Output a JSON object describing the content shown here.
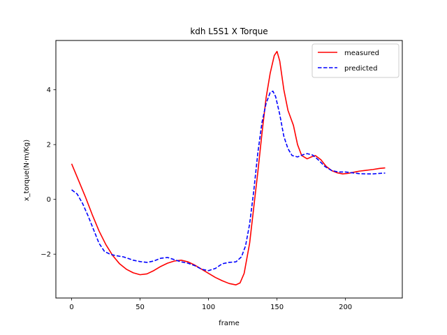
{
  "chart_data": {
    "type": "line",
    "title": "kdh L5S1 X Torque",
    "xlabel": "frame",
    "ylabel": "x_torque(N·m/Kg)",
    "xlim": [
      -11.5,
      241.5
    ],
    "ylim": [
      -3.6,
      5.8
    ],
    "xticks": [
      0,
      50,
      100,
      150,
      200
    ],
    "yticks": [
      -2,
      0,
      2,
      4
    ],
    "grid": false,
    "legend_position": "top-right",
    "series": [
      {
        "name": "measured",
        "color": "#ff0000",
        "style": "solid",
        "points": [
          [
            0,
            1.3
          ],
          [
            5,
            0.7
          ],
          [
            10,
            0.1
          ],
          [
            15,
            -0.55
          ],
          [
            20,
            -1.15
          ],
          [
            25,
            -1.65
          ],
          [
            30,
            -2.05
          ],
          [
            35,
            -2.35
          ],
          [
            40,
            -2.55
          ],
          [
            45,
            -2.68
          ],
          [
            50,
            -2.75
          ],
          [
            55,
            -2.72
          ],
          [
            60,
            -2.6
          ],
          [
            65,
            -2.45
          ],
          [
            70,
            -2.33
          ],
          [
            75,
            -2.25
          ],
          [
            80,
            -2.22
          ],
          [
            85,
            -2.28
          ],
          [
            90,
            -2.4
          ],
          [
            95,
            -2.55
          ],
          [
            100,
            -2.7
          ],
          [
            105,
            -2.85
          ],
          [
            110,
            -2.97
          ],
          [
            115,
            -3.07
          ],
          [
            120,
            -3.12
          ],
          [
            123,
            -3.05
          ],
          [
            126,
            -2.7
          ],
          [
            130,
            -1.6
          ],
          [
            133,
            -0.3
          ],
          [
            136,
            1.0
          ],
          [
            139,
            2.4
          ],
          [
            142,
            3.7
          ],
          [
            145,
            4.6
          ],
          [
            148,
            5.25
          ],
          [
            150,
            5.4
          ],
          [
            152,
            5.05
          ],
          [
            155,
            4.0
          ],
          [
            158,
            3.25
          ],
          [
            162,
            2.7
          ],
          [
            165,
            2.0
          ],
          [
            168,
            1.6
          ],
          [
            172,
            1.48
          ],
          [
            175,
            1.55
          ],
          [
            178,
            1.6
          ],
          [
            182,
            1.45
          ],
          [
            186,
            1.2
          ],
          [
            190,
            1.05
          ],
          [
            194,
            0.97
          ],
          [
            198,
            0.93
          ],
          [
            202,
            0.95
          ],
          [
            206,
            0.99
          ],
          [
            210,
            1.03
          ],
          [
            215,
            1.06
          ],
          [
            220,
            1.09
          ],
          [
            225,
            1.13
          ],
          [
            229,
            1.15
          ]
        ]
      },
      {
        "name": "predicted",
        "color": "#0000ff",
        "style": "dashed",
        "points": [
          [
            0,
            0.35
          ],
          [
            4,
            0.2
          ],
          [
            8,
            -0.15
          ],
          [
            12,
            -0.6
          ],
          [
            16,
            -1.1
          ],
          [
            20,
            -1.6
          ],
          [
            24,
            -1.9
          ],
          [
            28,
            -2.0
          ],
          [
            32,
            -2.05
          ],
          [
            38,
            -2.1
          ],
          [
            45,
            -2.22
          ],
          [
            50,
            -2.27
          ],
          [
            55,
            -2.3
          ],
          [
            60,
            -2.25
          ],
          [
            65,
            -2.15
          ],
          [
            70,
            -2.12
          ],
          [
            75,
            -2.2
          ],
          [
            80,
            -2.28
          ],
          [
            85,
            -2.33
          ],
          [
            90,
            -2.42
          ],
          [
            95,
            -2.55
          ],
          [
            100,
            -2.6
          ],
          [
            105,
            -2.52
          ],
          [
            110,
            -2.35
          ],
          [
            115,
            -2.3
          ],
          [
            120,
            -2.28
          ],
          [
            124,
            -2.1
          ],
          [
            127,
            -1.7
          ],
          [
            130,
            -0.9
          ],
          [
            133,
            0.3
          ],
          [
            136,
            1.7
          ],
          [
            139,
            2.8
          ],
          [
            142,
            3.5
          ],
          [
            145,
            3.9
          ],
          [
            147,
            3.95
          ],
          [
            149,
            3.75
          ],
          [
            152,
            3.1
          ],
          [
            155,
            2.3
          ],
          [
            158,
            1.85
          ],
          [
            161,
            1.6
          ],
          [
            165,
            1.55
          ],
          [
            169,
            1.63
          ],
          [
            172,
            1.67
          ],
          [
            176,
            1.62
          ],
          [
            180,
            1.45
          ],
          [
            185,
            1.2
          ],
          [
            190,
            1.05
          ],
          [
            195,
            1.0
          ],
          [
            200,
            1.0
          ],
          [
            205,
            0.97
          ],
          [
            210,
            0.94
          ],
          [
            215,
            0.93
          ],
          [
            220,
            0.93
          ],
          [
            225,
            0.95
          ],
          [
            229,
            0.96
          ]
        ]
      }
    ]
  }
}
